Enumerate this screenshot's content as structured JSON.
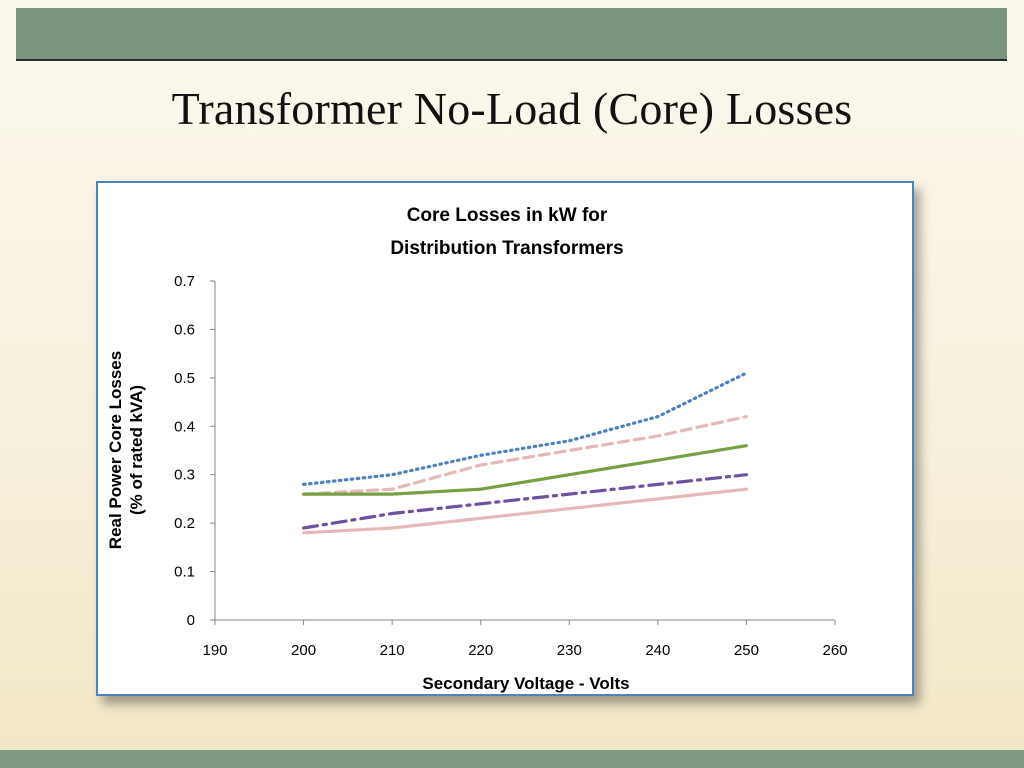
{
  "slide": {
    "title": "Transformer No-Load (Core) Losses"
  },
  "chart_data": {
    "type": "line",
    "title_lines": [
      "Core Losses in kW for",
      "Distribution Transformers"
    ],
    "xlabel": "Secondary Voltage - Volts",
    "ylabel_lines": [
      "Real Power Core Losses",
      "(% of rated kVA)"
    ],
    "xlim": [
      190,
      260
    ],
    "ylim": [
      0,
      0.7
    ],
    "x_ticks": [
      "190",
      "200",
      "210",
      "220",
      "230",
      "240",
      "250",
      "260"
    ],
    "y_ticks": [
      "0",
      "0.1",
      "0.2",
      "0.3",
      "0.4",
      "0.5",
      "0.6",
      "0.7"
    ],
    "grid": false,
    "legend": "none",
    "series": [
      {
        "x": [
          200,
          210,
          220,
          230,
          240,
          250
        ],
        "values": [
          0.28,
          0.3,
          0.34,
          0.37,
          0.42,
          0.51
        ],
        "color": "#4f81bd",
        "style": "dotted"
      },
      {
        "x": [
          200,
          210,
          220,
          230,
          240,
          250
        ],
        "values": [
          0.26,
          0.27,
          0.32,
          0.35,
          0.38,
          0.42
        ],
        "color": "#e6b9b8",
        "style": "dashed"
      },
      {
        "x": [
          200,
          210,
          220,
          230,
          240,
          250
        ],
        "values": [
          0.26,
          0.26,
          0.27,
          0.3,
          0.33,
          0.36
        ],
        "color": "#77a044",
        "style": "solid"
      },
      {
        "x": [
          200,
          210,
          220,
          230,
          240,
          250
        ],
        "values": [
          0.19,
          0.22,
          0.24,
          0.26,
          0.28,
          0.3
        ],
        "color": "#7050a0",
        "style": "dash-dot"
      },
      {
        "x": [
          200,
          210,
          220,
          230,
          240,
          250
        ],
        "values": [
          0.18,
          0.19,
          0.21,
          0.23,
          0.25,
          0.27
        ],
        "color": "#e6b9b8",
        "style": "solid"
      }
    ]
  }
}
